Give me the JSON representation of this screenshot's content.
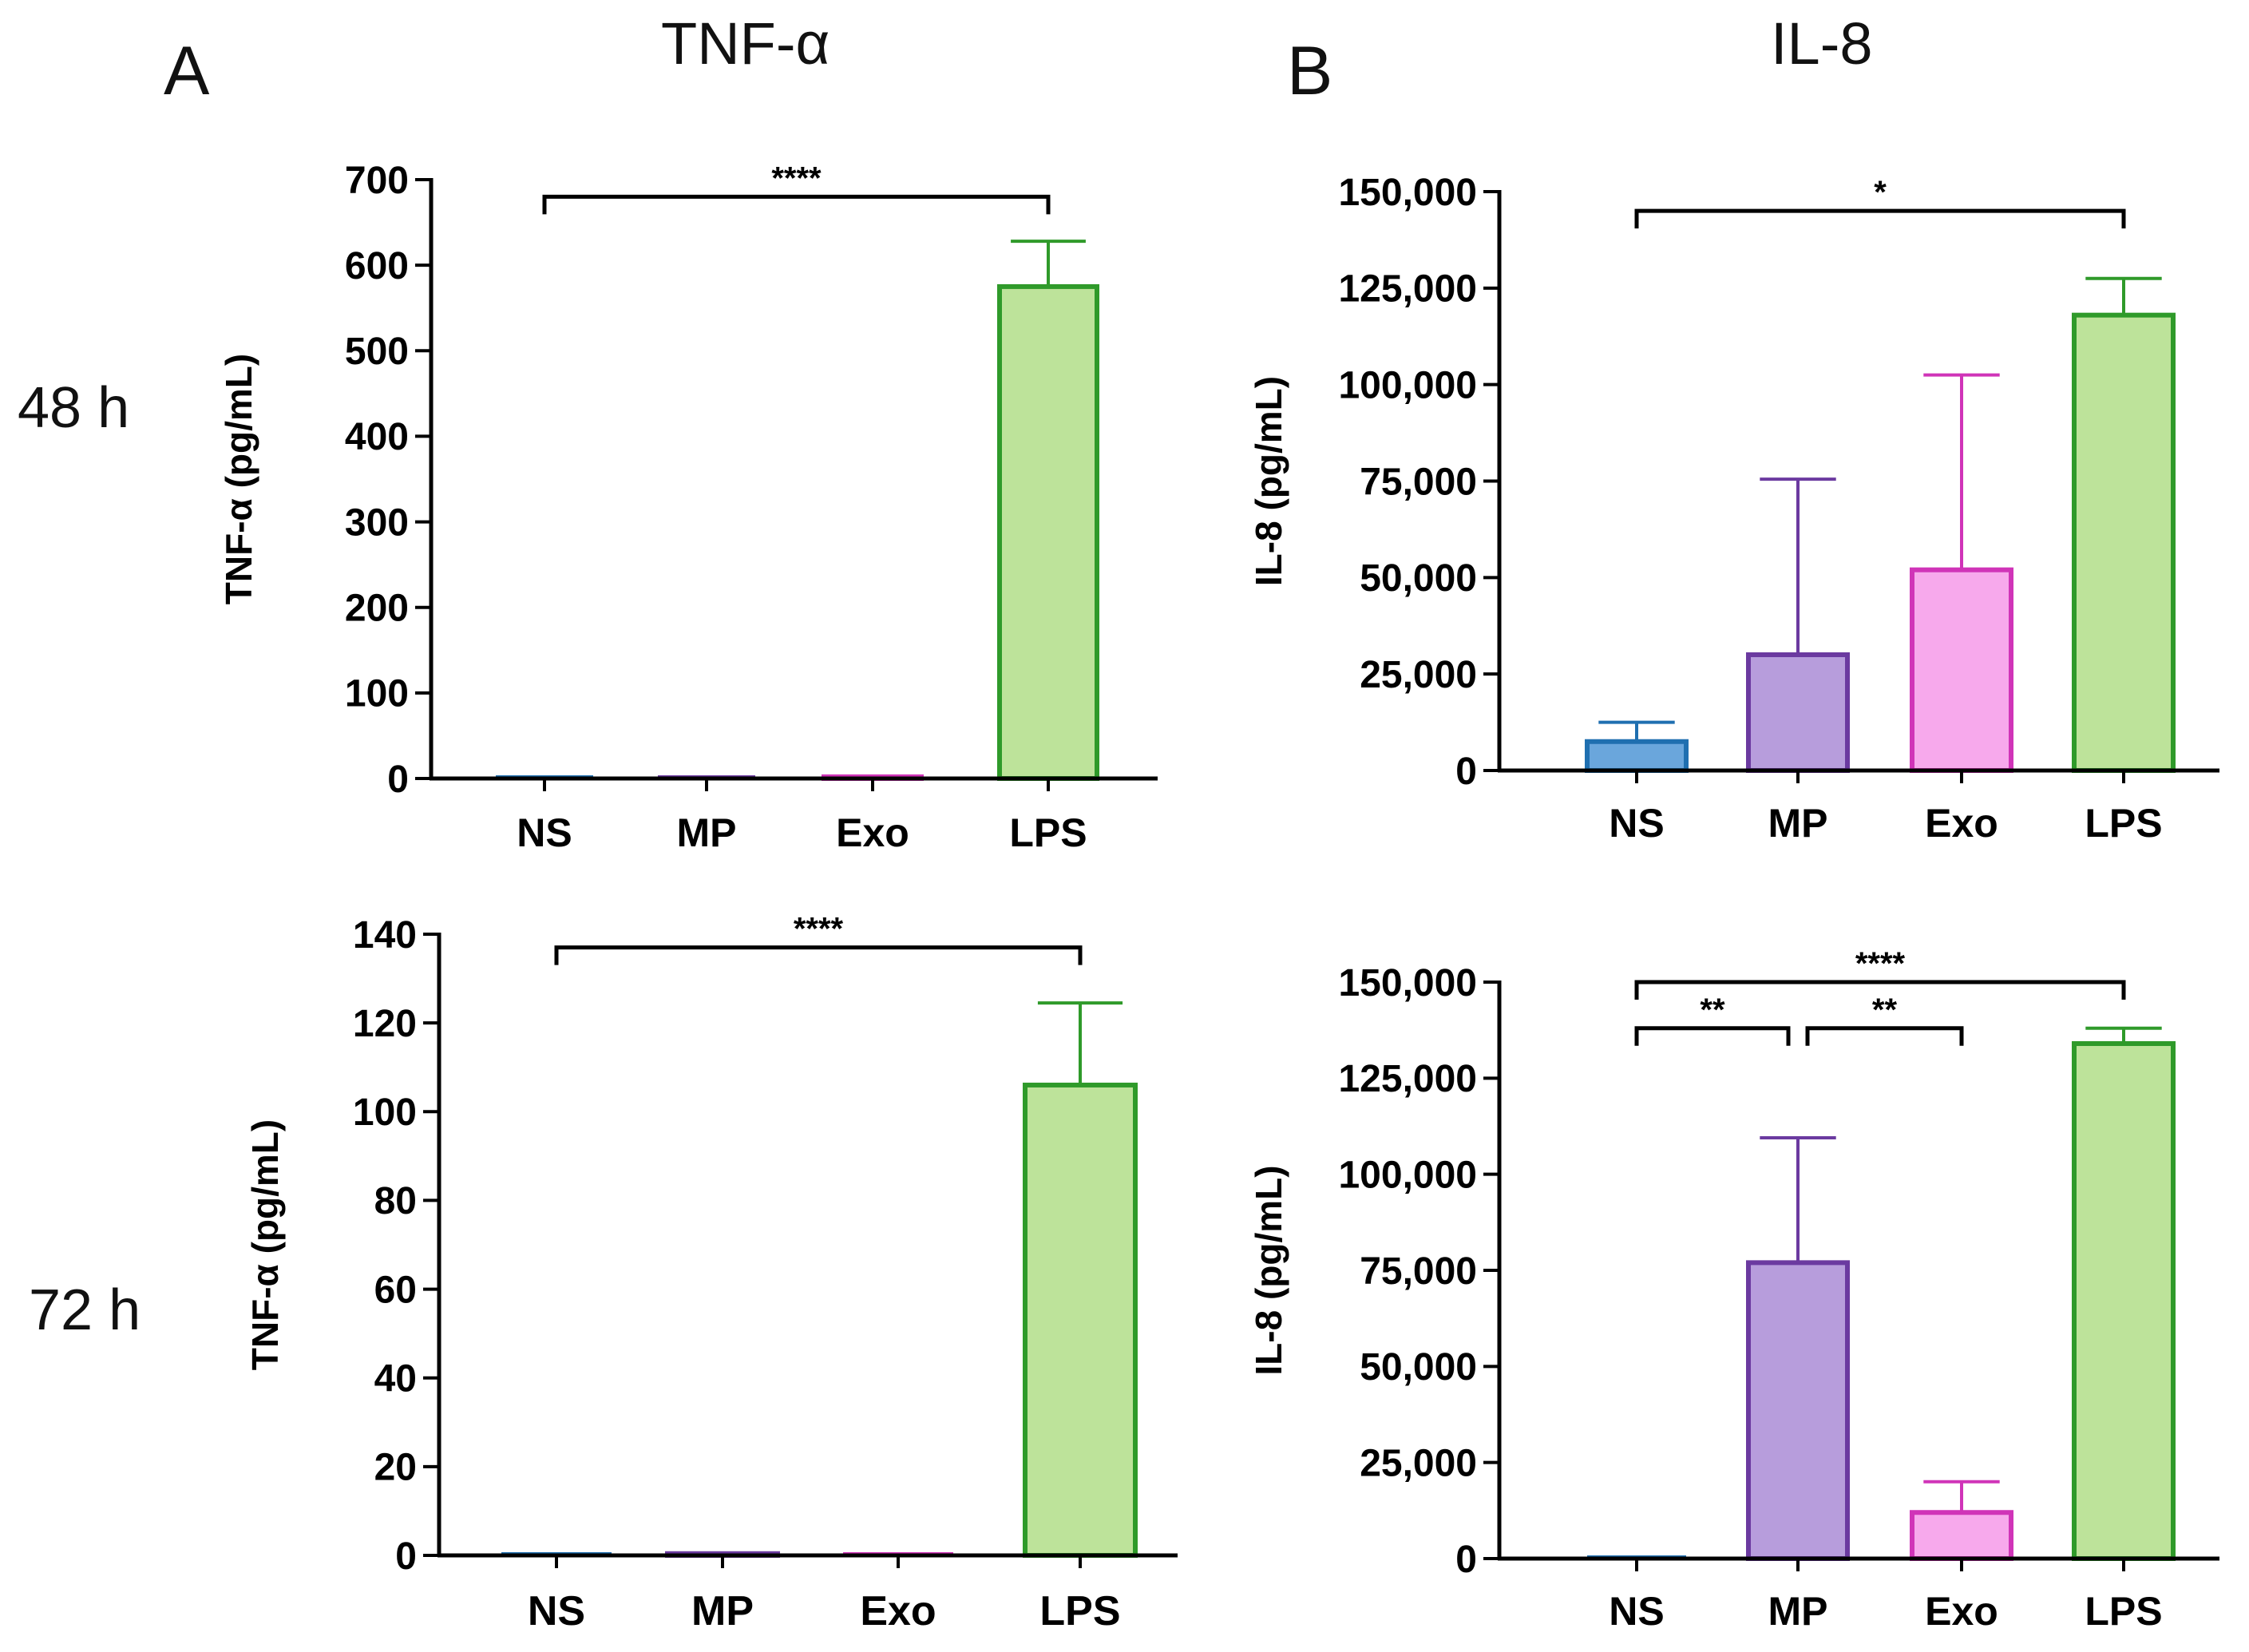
{
  "figure": {
    "panel_a_letter": "A",
    "panel_b_letter": "B",
    "panel_a_title": "TNF-α",
    "panel_b_title": "IL-8",
    "row_48_label": "48 h",
    "row_72_label": "72 h"
  },
  "colors": {
    "NS": {
      "stroke": "#1f6fb0",
      "fill": "#6aa6dc"
    },
    "MP": {
      "stroke": "#6b3aa0",
      "fill": "#b79ddc"
    },
    "Exo": {
      "stroke": "#d034b8",
      "fill": "#f7a9ec"
    },
    "LPS": {
      "stroke": "#2f9a2a",
      "fill": "#bde39a"
    },
    "axis": "#000000"
  },
  "chart_data": [
    {
      "id": "tnf-48h",
      "type": "bar",
      "title": "",
      "xlabel": "",
      "ylabel": "TNF-α (pg/mL)",
      "categories": [
        "NS",
        "MP",
        "Exo",
        "LPS"
      ],
      "values": [
        0,
        0,
        2,
        575
      ],
      "errors": [
        0,
        0,
        0,
        53
      ],
      "ylim": [
        0,
        700
      ],
      "yticks": [
        0,
        100,
        200,
        300,
        400,
        500,
        600,
        700
      ],
      "ytick_labels": [
        "0",
        "100",
        "200",
        "300",
        "400",
        "500",
        "600",
        "700"
      ],
      "grid": false,
      "significance": [
        {
          "from": "NS",
          "to": "LPS",
          "label": "****",
          "level": 680
        }
      ]
    },
    {
      "id": "il8-48h",
      "type": "bar",
      "title": "",
      "xlabel": "",
      "ylabel": "IL-8 (pg/mL)",
      "categories": [
        "NS",
        "MP",
        "Exo",
        "LPS"
      ],
      "values": [
        7500,
        30000,
        52000,
        118000
      ],
      "errors": [
        5000,
        45500,
        50500,
        9500
      ],
      "ylim": [
        0,
        150000
      ],
      "yticks": [
        0,
        25000,
        50000,
        75000,
        100000,
        125000,
        150000
      ],
      "ytick_labels": [
        "0",
        "25,000",
        "50,000",
        "75,000",
        "100,000",
        "125,000",
        "150,000"
      ],
      "grid": false,
      "significance": [
        {
          "from": "NS",
          "to": "LPS",
          "label": "*",
          "level": 145000
        }
      ]
    },
    {
      "id": "tnf-72h",
      "type": "bar",
      "title": "",
      "xlabel": "",
      "ylabel": "TNF-α (pg/mL)",
      "categories": [
        "NS",
        "MP",
        "Exo",
        "LPS"
      ],
      "values": [
        0,
        0.4,
        0,
        106
      ],
      "errors": [
        0,
        0,
        0,
        18.5
      ],
      "ylim": [
        0,
        140
      ],
      "yticks": [
        0,
        20,
        40,
        60,
        80,
        100,
        120,
        140
      ],
      "ytick_labels": [
        "0",
        "20",
        "40",
        "60",
        "80",
        "100",
        "120",
        "140"
      ],
      "grid": false,
      "significance": [
        {
          "from": "NS",
          "to": "LPS",
          "label": "****",
          "level": 137
        }
      ]
    },
    {
      "id": "il8-72h",
      "type": "bar",
      "title": "",
      "xlabel": "",
      "ylabel": "IL-8 (pg/mL)",
      "categories": [
        "NS",
        "MP",
        "Exo",
        "LPS"
      ],
      "values": [
        0,
        77000,
        12000,
        134000
      ],
      "errors": [
        0,
        32500,
        8000,
        4000
      ],
      "ylim": [
        0,
        150000
      ],
      "yticks": [
        0,
        25000,
        50000,
        75000,
        100000,
        125000,
        150000
      ],
      "ytick_labels": [
        "0",
        "25,000",
        "50,000",
        "75,000",
        "100,000",
        "125,000",
        "150,000"
      ],
      "grid": false,
      "significance": [
        {
          "from": "NS",
          "to": "LPS",
          "label": "****",
          "level": 150000
        },
        {
          "from": "NS",
          "to": "MP",
          "label": "**",
          "level": 138000
        },
        {
          "from": "MP",
          "to": "Exo",
          "label": "**",
          "level": 138000
        }
      ]
    }
  ]
}
